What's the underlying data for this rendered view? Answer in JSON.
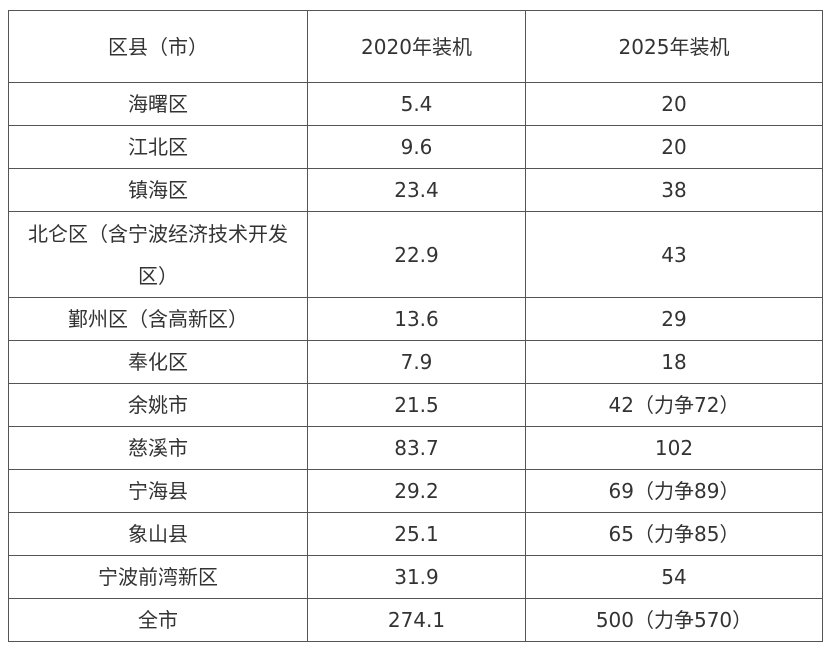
{
  "table": {
    "header": [
      "区县（市）",
      "2020年装机",
      "2025年装机"
    ],
    "rows": [
      [
        "海曙区",
        "5.4",
        "20"
      ],
      [
        "江北区",
        "9.6",
        "20"
      ],
      [
        "镇海区",
        "23.4",
        "38"
      ],
      [
        "北仑区（含宁波经济技术开发区）",
        "22.9",
        "43"
      ],
      [
        "鄞州区（含高新区）",
        "13.6",
        "29"
      ],
      [
        "奉化区",
        "7.9",
        "18"
      ],
      [
        "余姚市",
        "21.5",
        "42（力争72）"
      ],
      [
        "慈溪市",
        "83.7",
        "102"
      ],
      [
        "宁海县",
        "29.2",
        "69（力争89）"
      ],
      [
        "象山县",
        "25.1",
        "65（力争85）"
      ],
      [
        "宁波前湾新区",
        "31.9",
        "54"
      ],
      [
        "全市",
        "274.1",
        "500（力争570）"
      ]
    ]
  }
}
